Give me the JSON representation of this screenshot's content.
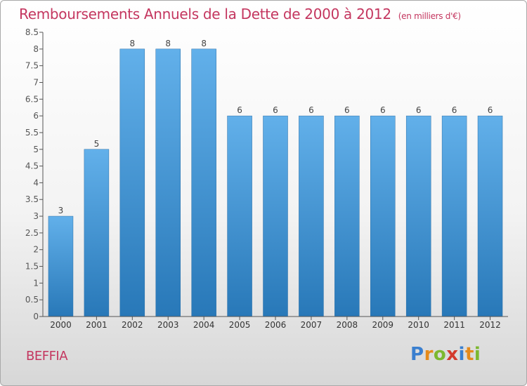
{
  "title": "Remboursements Annuels de la Dette de 2000 à 2012",
  "unit": "(en milliers d'€)",
  "commune": "BEFFIA",
  "logo": {
    "letters": [
      "P",
      "r",
      "o",
      "x",
      "i",
      "t",
      "i"
    ]
  },
  "colors": {
    "bar_light": "#62b0ea",
    "bar_dark": "#2878b8",
    "title": "#c4365f"
  },
  "chart_data": {
    "type": "bar",
    "categories": [
      "2000",
      "2001",
      "2002",
      "2003",
      "2004",
      "2005",
      "2006",
      "2007",
      "2008",
      "2009",
      "2010",
      "2011",
      "2012"
    ],
    "values": [
      3,
      5,
      8,
      8,
      8,
      6,
      6,
      6,
      6,
      6,
      6,
      6,
      6
    ],
    "ylim": [
      0,
      8.5
    ],
    "yticks": [
      0,
      0.5,
      1,
      1.5,
      2,
      2.5,
      3,
      3.5,
      4,
      4.5,
      5,
      5.5,
      6,
      6.5,
      7,
      7.5,
      8,
      8.5
    ],
    "data_labels": [
      "3",
      "5",
      "8",
      "8",
      "8",
      "6",
      "6",
      "6",
      "6",
      "6",
      "6",
      "6",
      "6"
    ],
    "grid": false
  }
}
